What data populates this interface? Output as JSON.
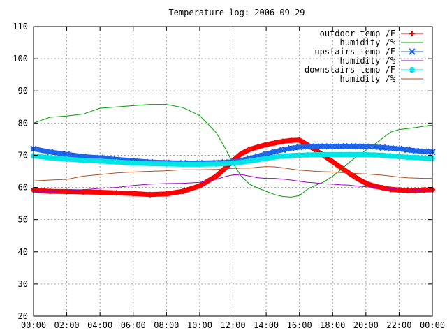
{
  "chart_data": {
    "type": "line",
    "title": "Temperature log: 2006-09-29",
    "xlabel": "",
    "ylabel": "",
    "x_ticks": [
      "00:00",
      "02:00",
      "04:00",
      "06:00",
      "08:00",
      "10:00",
      "12:00",
      "14:00",
      "16:00",
      "18:00",
      "20:00",
      "22:00",
      "00:00"
    ],
    "xlim": [
      0,
      24
    ],
    "ylim": [
      20,
      110
    ],
    "y_ticks": [
      20,
      30,
      40,
      50,
      60,
      70,
      80,
      90,
      100,
      110
    ],
    "grid": true,
    "legend_position": "top-right",
    "x": [
      0,
      1,
      2,
      3,
      4,
      5,
      6,
      7,
      8,
      9,
      10,
      11,
      11.5,
      12,
      12.5,
      13,
      13.5,
      14,
      14.5,
      15,
      15.5,
      16,
      16.5,
      17,
      17.5,
      18,
      18.5,
      19,
      19.5,
      20,
      20.5,
      21,
      21.5,
      22,
      22.5,
      23,
      23.5,
      24
    ],
    "series": [
      {
        "name": "outdoor temp /F",
        "color": "#ff0000",
        "marker": "plus",
        "values": [
          59.2,
          58.8,
          58.7,
          58.6,
          58.5,
          58.3,
          58.1,
          57.8,
          58.0,
          58.8,
          60.5,
          63.5,
          65.8,
          68.3,
          70.5,
          71.8,
          72.6,
          73.3,
          73.8,
          74.3,
          74.6,
          74.7,
          73.2,
          71.5,
          69.8,
          68.0,
          66.2,
          64.4,
          62.7,
          61.3,
          60.4,
          59.9,
          59.4,
          59.2,
          59.1,
          59.1,
          59.2,
          59.3
        ]
      },
      {
        "name": "humidity /%",
        "color": "#00a000",
        "marker": "none",
        "values": [
          80.0,
          81.8,
          82.2,
          82.8,
          84.6,
          85.0,
          85.4,
          85.8,
          85.8,
          84.8,
          82.3,
          77.0,
          72.5,
          67.5,
          63.5,
          61.0,
          59.8,
          58.8,
          57.8,
          57.2,
          57.0,
          57.5,
          59.5,
          60.7,
          61.8,
          63.5,
          65.5,
          67.8,
          69.8,
          71.5,
          73.3,
          75.3,
          77.2,
          78.0,
          78.3,
          78.6,
          79.0,
          79.4
        ]
      },
      {
        "name": "upstairs temp /F",
        "color": "#1e64e6",
        "marker": "cross",
        "values": [
          72.0,
          71.0,
          70.3,
          69.6,
          69.2,
          68.7,
          68.3,
          67.9,
          67.7,
          67.6,
          67.6,
          67.7,
          67.8,
          68.0,
          68.4,
          69.0,
          69.7,
          70.4,
          71.1,
          71.7,
          72.2,
          72.5,
          72.7,
          72.8,
          72.8,
          72.8,
          72.8,
          72.8,
          72.8,
          72.7,
          72.6,
          72.4,
          72.2,
          72.0,
          71.7,
          71.4,
          71.2,
          71.0
        ]
      },
      {
        "name": "humidity /%",
        "color": "#a000c8",
        "marker": "none",
        "values": [
          58.6,
          58.7,
          59.0,
          59.3,
          59.7,
          60.0,
          60.6,
          61.0,
          61.2,
          61.3,
          61.6,
          62.5,
          63.3,
          63.9,
          64.0,
          63.5,
          63.0,
          62.8,
          62.8,
          62.6,
          62.3,
          61.9,
          61.6,
          61.4,
          61.1,
          61.0,
          60.8,
          60.7,
          60.4,
          60.2,
          60.0,
          59.8,
          59.6,
          59.4,
          59.3,
          59.2,
          59.0,
          59.0
        ]
      },
      {
        "name": "downstairs temp /F",
        "color": "#00e4e4",
        "marker": "star",
        "values": [
          69.8,
          69.2,
          68.8,
          68.4,
          68.2,
          67.9,
          67.6,
          67.4,
          67.3,
          67.2,
          67.2,
          67.3,
          67.4,
          67.6,
          67.8,
          68.2,
          68.6,
          69.0,
          69.4,
          69.7,
          69.9,
          70.0,
          70.1,
          70.2,
          70.2,
          70.2,
          70.2,
          70.2,
          70.2,
          70.2,
          70.1,
          70.0,
          69.8,
          69.6,
          69.4,
          69.3,
          69.1,
          69.0
        ]
      },
      {
        "name": "humidity /%",
        "color": "#b4501e",
        "marker": "none",
        "values": [
          62.0,
          62.3,
          62.5,
          63.5,
          64.0,
          64.5,
          64.8,
          65.0,
          65.2,
          65.5,
          65.5,
          65.6,
          65.8,
          65.9,
          66.0,
          66.0,
          66.3,
          66.5,
          66.4,
          66.1,
          65.7,
          65.4,
          65.2,
          65.0,
          64.9,
          64.8,
          64.6,
          64.5,
          64.3,
          64.2,
          64.0,
          63.8,
          63.5,
          63.2,
          63.0,
          62.9,
          62.8,
          62.8
        ]
      }
    ]
  }
}
